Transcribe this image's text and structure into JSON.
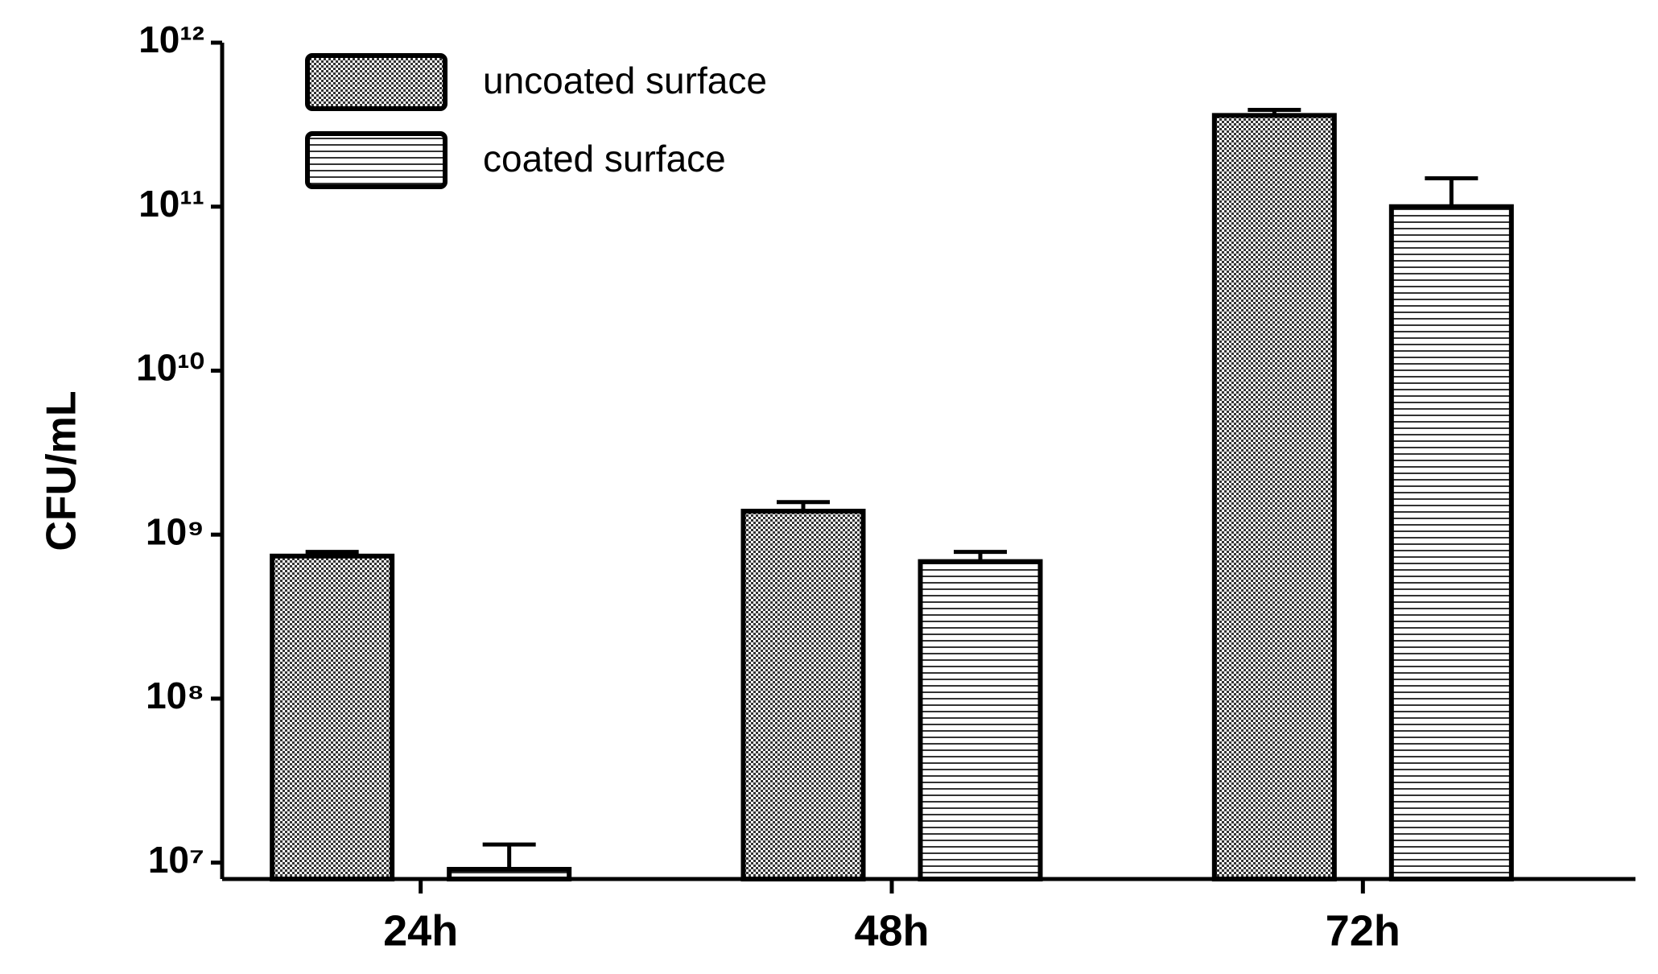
{
  "chart_data": {
    "type": "bar",
    "y_label": "CFU/mL",
    "log_scale": true,
    "categories": [
      "24h",
      "48h",
      "72h"
    ],
    "series": [
      {
        "name": "uncoated surface",
        "color": "#333333",
        "pattern": "checker",
        "values": [
          740000000,
          1390000000,
          360000000000
        ],
        "errors": [
          45000000,
          190000000,
          29000000000
        ]
      },
      {
        "name": "coated surface",
        "color": "#333333",
        "pattern": "hlines",
        "values": [
          9100000,
          685000000,
          100000000000
        ],
        "errors": [
          3800000,
          100000000,
          49000000000
        ]
      }
    ],
    "ylim": [
      7943282,
      1000000000000
    ],
    "yticks": [
      {
        "value": 10000000,
        "label": "10⁷"
      },
      {
        "value": 100000000,
        "label": "10⁸"
      },
      {
        "value": 1000000000,
        "label": "10⁹"
      },
      {
        "value": 10000000000,
        "label": "10¹⁰"
      },
      {
        "value": 100000000000,
        "label": "10¹¹"
      },
      {
        "value": 1000000000000,
        "label": "10¹²"
      }
    ],
    "legend": "top-left",
    "grid": false
  }
}
